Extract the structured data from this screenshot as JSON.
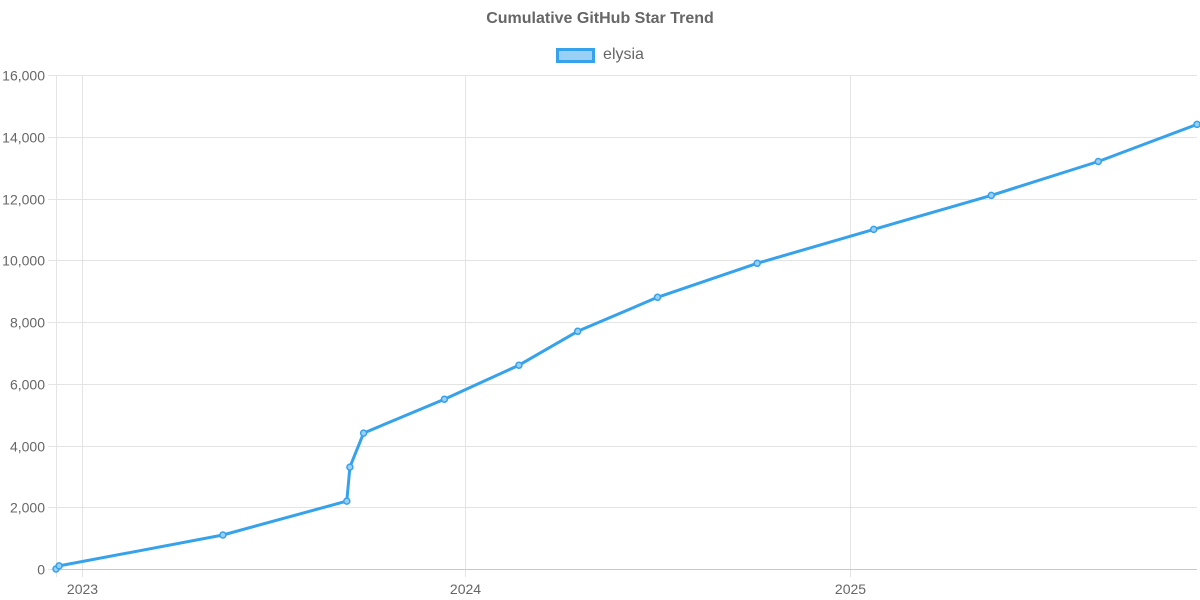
{
  "chart_data": {
    "type": "line",
    "title": "Cumulative GitHub Star Trend",
    "xlabel": "",
    "ylabel": "",
    "ylim": [
      0,
      16000
    ],
    "xlim": [
      "2022-12-07",
      "2025-11-28"
    ],
    "y_ticks": [
      0,
      2000,
      4000,
      6000,
      8000,
      10000,
      12000,
      14000,
      16000
    ],
    "y_tick_labels": [
      "0",
      "2,000",
      "4,000",
      "6,000",
      "8,000",
      "10,000",
      "12,000",
      "14,000",
      "16,000"
    ],
    "x_ticks": [
      "2023-01-01",
      "2024-01-01",
      "2025-01-01"
    ],
    "x_tick_labels": [
      "2023",
      "2024",
      "2025"
    ],
    "grid": true,
    "legend_position": "top",
    "series": [
      {
        "name": "elysia",
        "color": "#36a2eb",
        "fill_color": "#9ad0f5",
        "points": [
          {
            "x": "2022-12-07",
            "y": 0
          },
          {
            "x": "2022-12-10",
            "y": 100
          },
          {
            "x": "2023-05-15",
            "y": 1100
          },
          {
            "x": "2023-09-10",
            "y": 2200
          },
          {
            "x": "2023-09-13",
            "y": 3300
          },
          {
            "x": "2023-09-26",
            "y": 4400
          },
          {
            "x": "2023-12-12",
            "y": 5500
          },
          {
            "x": "2024-02-21",
            "y": 6600
          },
          {
            "x": "2024-04-17",
            "y": 7700
          },
          {
            "x": "2024-07-02",
            "y": 8800
          },
          {
            "x": "2024-10-05",
            "y": 9900
          },
          {
            "x": "2025-01-24",
            "y": 11000
          },
          {
            "x": "2025-05-16",
            "y": 12100
          },
          {
            "x": "2025-08-26",
            "y": 13200
          },
          {
            "x": "2025-11-28",
            "y": 14400
          }
        ]
      }
    ]
  }
}
